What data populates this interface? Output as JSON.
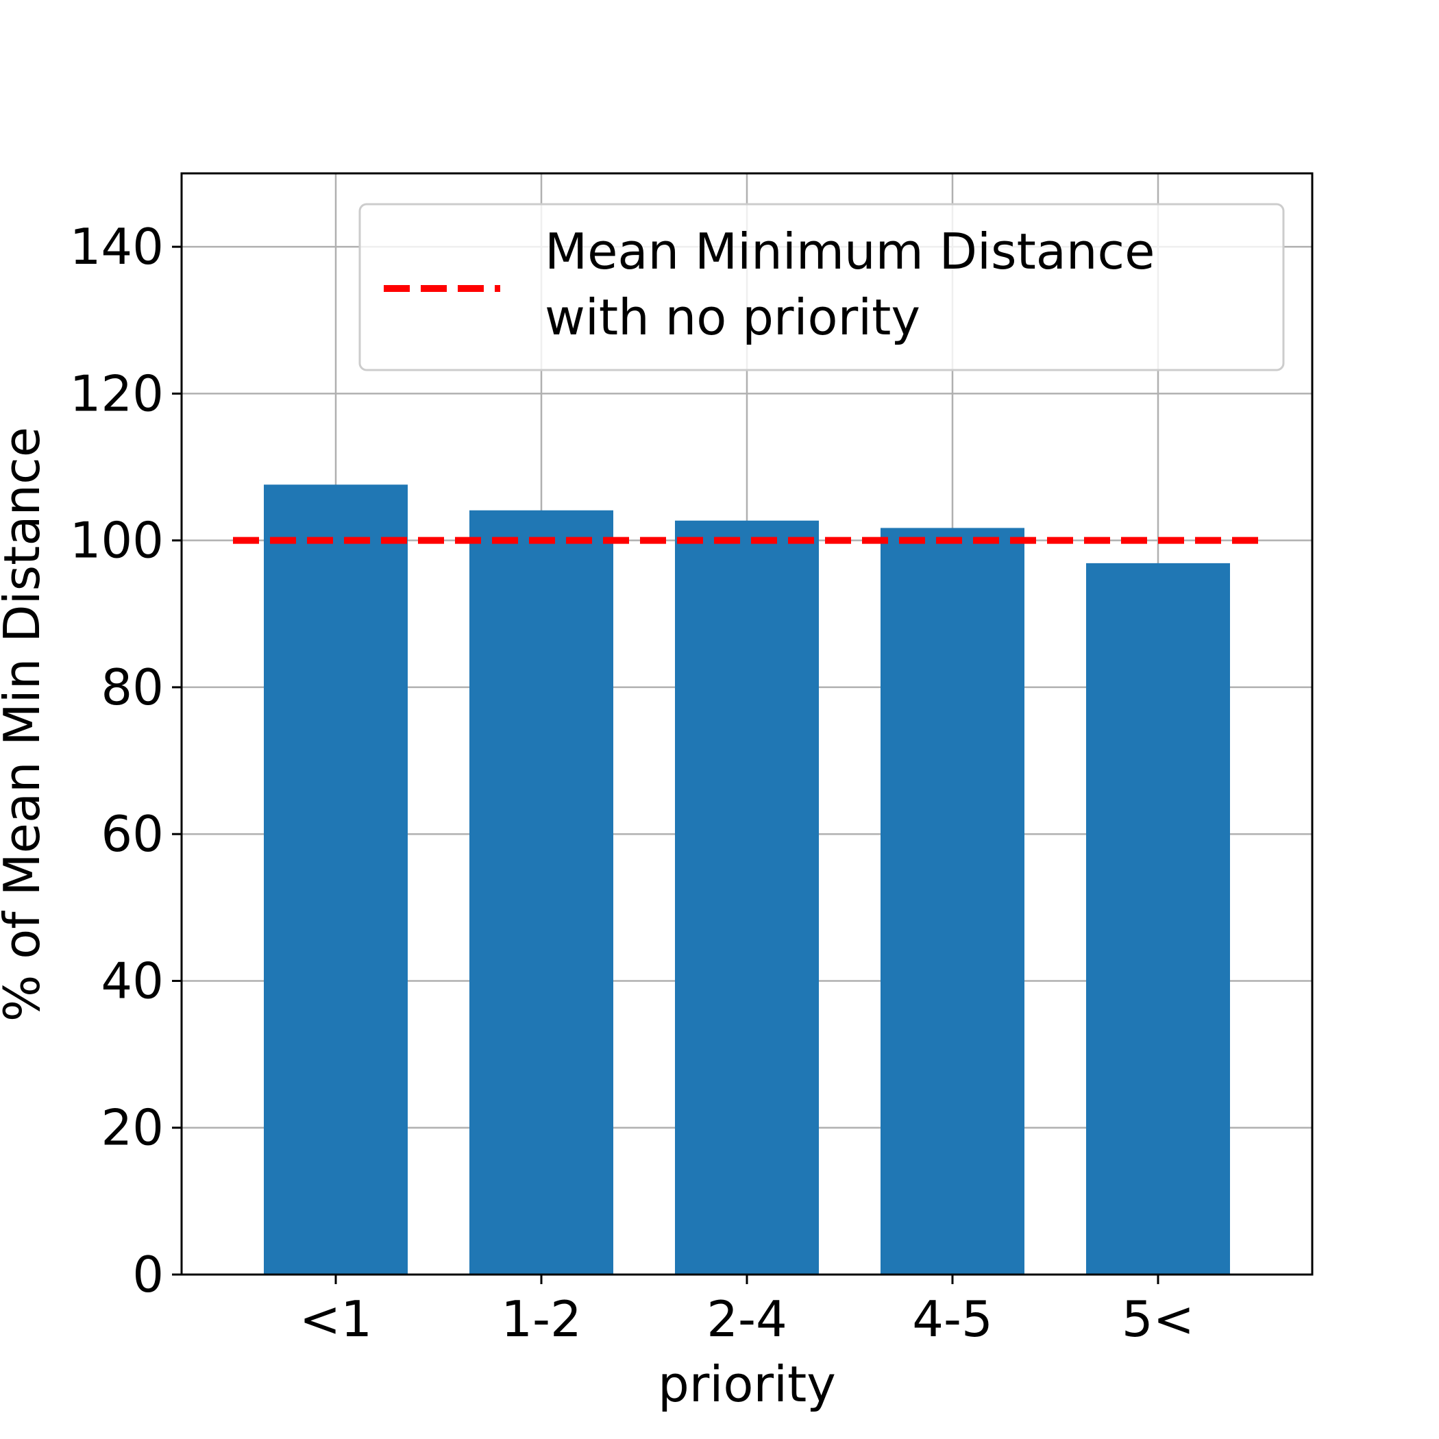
{
  "chart_data": {
    "type": "bar",
    "categories": [
      "<1",
      "1-2",
      "2-4",
      "4-5",
      "5<"
    ],
    "values": [
      107.6,
      104.1,
      102.7,
      101.7,
      96.9
    ],
    "xlabel": "priority",
    "ylabel": "% of Mean Min Distance",
    "ylim": [
      0,
      150
    ],
    "yticks": [
      0,
      20,
      40,
      60,
      80,
      100,
      120,
      140
    ],
    "grid": true,
    "bar_color": "#2077b4",
    "reference_line": {
      "value": 100,
      "color": "#ff0000",
      "style": "dashed",
      "label": "Mean Minimum Distance\nwith no priority"
    },
    "legend": {
      "placement": "top-right",
      "lines": [
        "Mean Minimum Distance",
        "with no priority"
      ]
    }
  }
}
